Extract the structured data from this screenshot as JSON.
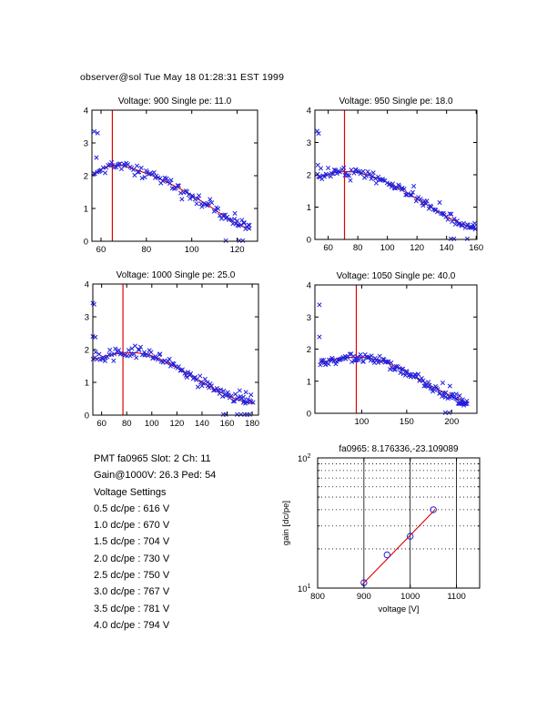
{
  "header": {
    "timestamp": "observer@sol Tue May 18 01:28:31 EST 1999"
  },
  "info_block": {
    "lines": [
      "PMT fa0965 Slot: 2 Ch: 11",
      "Gain@1000V: 26.3 Ped: 54",
      "Voltage Settings",
      "0.5 dc/pe : 616 V",
      "1.0 dc/pe : 670 V",
      "1.5 dc/pe : 704 V",
      "2.0 dc/pe : 730 V",
      "2.5 dc/pe : 750 V",
      "3.0 dc/pe : 767 V",
      "3.5 dc/pe : 781 V",
      "4.0 dc/pe : 794 V"
    ]
  },
  "colors": {
    "marker_blue": "#2020dd",
    "fit_red": "#e00000",
    "axis_black": "#000000",
    "background": "#ffffff"
  },
  "chart_data": [
    {
      "type": "scatter",
      "style": "pe",
      "title": "Voltage: 900 Single pe: 11.0",
      "xlim": [
        56,
        129
      ],
      "ylim": [
        0,
        4
      ],
      "xticks": [
        60,
        80,
        100,
        120
      ],
      "yticks": [
        0,
        1,
        2,
        3,
        4
      ],
      "grid": false,
      "vline": 65,
      "marker": "x",
      "curve": [
        [
          56.5,
          2.02
        ],
        [
          60,
          2.2
        ],
        [
          64,
          2.3
        ],
        [
          67,
          2.33
        ],
        [
          70,
          2.3
        ],
        [
          74,
          2.22
        ],
        [
          78,
          2.12
        ],
        [
          82,
          2.02
        ],
        [
          86,
          1.9
        ],
        [
          90,
          1.77
        ],
        [
          94,
          1.63
        ],
        [
          98,
          1.48
        ],
        [
          102,
          1.32
        ],
        [
          106,
          1.15
        ],
        [
          110,
          0.97
        ],
        [
          114,
          0.78
        ],
        [
          118,
          0.6
        ],
        [
          122,
          0.46
        ],
        [
          126,
          0.38
        ]
      ],
      "outliers": [
        [
          57,
          3.35
        ],
        [
          58.5,
          3.3
        ],
        [
          58,
          2.55
        ],
        [
          115,
          0.02
        ],
        [
          121,
          0.02
        ],
        [
          122.5,
          0.02
        ],
        [
          119,
          0.85
        ],
        [
          120,
          0.62
        ],
        [
          123,
          0.55
        ],
        [
          125,
          0.5
        ]
      ],
      "noise": {
        "n": 100,
        "sigma": 0.085,
        "seed": 11,
        "x0": 56.5,
        "x1": 126
      }
    },
    {
      "type": "scatter",
      "style": "pe",
      "title": "Voltage: 950 Single pe: 18.0",
      "xlim": [
        51,
        160.5
      ],
      "ylim": [
        0,
        4
      ],
      "xticks": [
        60,
        80,
        100,
        120,
        140,
        160
      ],
      "yticks": [
        0,
        1,
        2,
        3,
        4
      ],
      "grid": false,
      "vline": 71,
      "marker": "x",
      "curve": [
        [
          52,
          1.9
        ],
        [
          58,
          1.99
        ],
        [
          63,
          2.05
        ],
        [
          68,
          2.09
        ],
        [
          72,
          2.1
        ],
        [
          77,
          2.09
        ],
        [
          82,
          2.05
        ],
        [
          88,
          1.98
        ],
        [
          94,
          1.88
        ],
        [
          100,
          1.76
        ],
        [
          106,
          1.62
        ],
        [
          112,
          1.47
        ],
        [
          118,
          1.31
        ],
        [
          124,
          1.15
        ],
        [
          130,
          0.98
        ],
        [
          136,
          0.82
        ],
        [
          142,
          0.66
        ],
        [
          148,
          0.52
        ],
        [
          154,
          0.41
        ],
        [
          160,
          0.32
        ]
      ],
      "outliers": [
        [
          52.5,
          3.35
        ],
        [
          53.5,
          3.28
        ],
        [
          53,
          2.3
        ],
        [
          55,
          2.2
        ],
        [
          143,
          0.02
        ],
        [
          145,
          0.02
        ],
        [
          154,
          0.02
        ],
        [
          156,
          0.38
        ],
        [
          158,
          0.45
        ],
        [
          159,
          0.5
        ]
      ],
      "noise": {
        "n": 110,
        "sigma": 0.085,
        "seed": 18,
        "x0": 52,
        "x1": 160
      }
    },
    {
      "type": "scatter",
      "style": "pe",
      "title": "Voltage: 1000 Single pe: 25.0",
      "xlim": [
        53,
        185
      ],
      "ylim": [
        0,
        4
      ],
      "xticks": [
        60,
        80,
        100,
        120,
        140,
        160,
        180
      ],
      "yticks": [
        0,
        1,
        2,
        3,
        4
      ],
      "grid": false,
      "vline": 77,
      "marker": "x",
      "curve": [
        [
          53,
          1.7
        ],
        [
          58,
          1.75
        ],
        [
          64,
          1.81
        ],
        [
          70,
          1.86
        ],
        [
          76,
          1.89
        ],
        [
          82,
          1.9
        ],
        [
          88,
          1.9
        ],
        [
          94,
          1.87
        ],
        [
          100,
          1.81
        ],
        [
          106,
          1.72
        ],
        [
          112,
          1.61
        ],
        [
          118,
          1.49
        ],
        [
          124,
          1.36
        ],
        [
          130,
          1.23
        ],
        [
          136,
          1.1
        ],
        [
          142,
          0.97
        ],
        [
          148,
          0.84
        ],
        [
          154,
          0.71
        ],
        [
          160,
          0.6
        ],
        [
          166,
          0.5
        ],
        [
          172,
          0.43
        ],
        [
          178,
          0.37
        ],
        [
          181,
          0.35
        ]
      ],
      "outliers": [
        [
          53,
          3.42
        ],
        [
          54,
          3.38
        ],
        [
          53,
          2.4
        ],
        [
          55,
          2.38
        ],
        [
          157,
          0.02
        ],
        [
          159,
          0.02
        ],
        [
          168,
          0.02
        ],
        [
          171,
          0.02
        ],
        [
          174,
          0.02
        ],
        [
          176,
          0.02
        ],
        [
          178,
          0.02
        ],
        [
          170,
          0.75
        ],
        [
          173,
          0.55
        ],
        [
          175,
          0.7
        ],
        [
          179,
          0.62
        ]
      ],
      "noise": {
        "n": 115,
        "sigma": 0.085,
        "seed": 25,
        "x0": 53,
        "x1": 181
      }
    },
    {
      "type": "scatter",
      "style": "pe",
      "title": "Voltage: 1050 Single pe: 40.0",
      "xlim": [
        48,
        228
      ],
      "ylim": [
        0,
        4
      ],
      "xticks": [
        100,
        150,
        200
      ],
      "yticks": [
        0,
        1,
        2,
        3,
        4
      ],
      "grid": false,
      "vline": 94,
      "marker": "x",
      "curve": [
        [
          53,
          1.58
        ],
        [
          60,
          1.62
        ],
        [
          68,
          1.67
        ],
        [
          76,
          1.71
        ],
        [
          84,
          1.74
        ],
        [
          92,
          1.75
        ],
        [
          100,
          1.75
        ],
        [
          108,
          1.73
        ],
        [
          116,
          1.68
        ],
        [
          124,
          1.61
        ],
        [
          132,
          1.52
        ],
        [
          140,
          1.42
        ],
        [
          148,
          1.3
        ],
        [
          156,
          1.17
        ],
        [
          164,
          1.05
        ],
        [
          172,
          0.93
        ],
        [
          180,
          0.81
        ],
        [
          188,
          0.7
        ],
        [
          196,
          0.59
        ],
        [
          204,
          0.48
        ],
        [
          212,
          0.39
        ],
        [
          218,
          0.33
        ]
      ],
      "outliers": [
        [
          53,
          3.38
        ],
        [
          53,
          2.38
        ],
        [
          193,
          0.02
        ],
        [
          197,
          0.02
        ],
        [
          190,
          0.95
        ],
        [
          198,
          0.85
        ],
        [
          205,
          0.6
        ],
        [
          208,
          0.3
        ],
        [
          209.5,
          0.3
        ],
        [
          211,
          0.3
        ],
        [
          212.5,
          0.3
        ],
        [
          214,
          0.3
        ],
        [
          215.5,
          0.3
        ],
        [
          217,
          0.3
        ]
      ],
      "noise": {
        "n": 125,
        "sigma": 0.08,
        "seed": 40,
        "x0": 53,
        "x1": 217
      }
    },
    {
      "type": "scatter",
      "style": "gain",
      "title": "fa0965: 8.176336,-23.109089",
      "xlabel": "voltage [V]",
      "ylabel": "gain [dc/pe]",
      "xlim": [
        800,
        1150
      ],
      "ylim": [
        10,
        100
      ],
      "log_y": true,
      "xticks": [
        800,
        900,
        1000,
        1100
      ],
      "ytick_log": [
        1,
        2
      ],
      "grid_x_solid": [
        900,
        1000,
        1100
      ],
      "grid_y_dotted": [
        20,
        30,
        40,
        50,
        60,
        70,
        80,
        90
      ],
      "marker": "o",
      "points": [
        [
          900,
          11.0
        ],
        [
          950,
          18.0
        ],
        [
          1000,
          25.0
        ],
        [
          1050,
          40.0
        ]
      ],
      "fit_line": [
        [
          896,
          10.6
        ],
        [
          1053,
          39.8
        ]
      ],
      "fit_params": {
        "slope": 8.176336,
        "intercept": -23.109089
      }
    }
  ]
}
